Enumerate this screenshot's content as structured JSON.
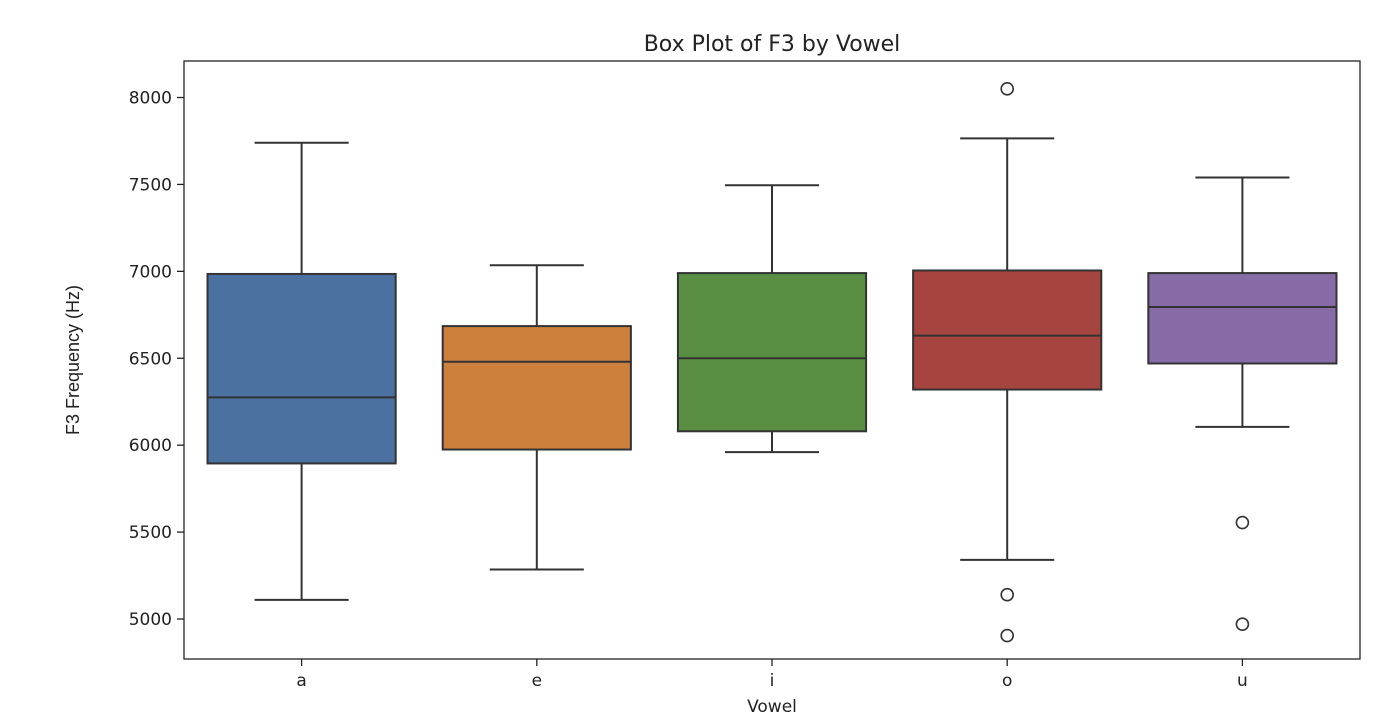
{
  "chart_data": {
    "type": "box",
    "title": "Box Plot of F3 by Vowel",
    "xlabel": "Vowel",
    "ylabel": "F3 Frequency (Hz)",
    "categories": [
      "a",
      "e",
      "i",
      "o",
      "u"
    ],
    "ylim": [
      4770,
      8210
    ],
    "yticks": [
      5000,
      5500,
      6000,
      6500,
      7000,
      7500,
      8000
    ],
    "grid": false,
    "legend": "none",
    "boxes": [
      {
        "category": "a",
        "whisker_low": 5110,
        "q1": 5895,
        "median": 6275,
        "q3": 6985,
        "whisker_high": 7740,
        "outliers": [],
        "color": "#4a71a0"
      },
      {
        "category": "e",
        "whisker_low": 5285,
        "q1": 5975,
        "median": 6480,
        "q3": 6685,
        "whisker_high": 7035,
        "outliers": [],
        "color": "#cd7f3c"
      },
      {
        "category": "i",
        "whisker_low": 5960,
        "q1": 6080,
        "median": 6500,
        "q3": 6990,
        "whisker_high": 7495,
        "outliers": [],
        "color": "#5a8f43"
      },
      {
        "category": "o",
        "whisker_low": 5340,
        "q1": 6320,
        "median": 6630,
        "q3": 7005,
        "whisker_high": 7765,
        "outliers": [
          8050,
          5140,
          4905
        ],
        "color": "#a64440"
      },
      {
        "category": "u",
        "whisker_low": 6105,
        "q1": 6470,
        "median": 6795,
        "q3": 6990,
        "whisker_high": 7540,
        "outliers": [
          5555,
          4970
        ],
        "color": "#866ba6"
      }
    ]
  }
}
